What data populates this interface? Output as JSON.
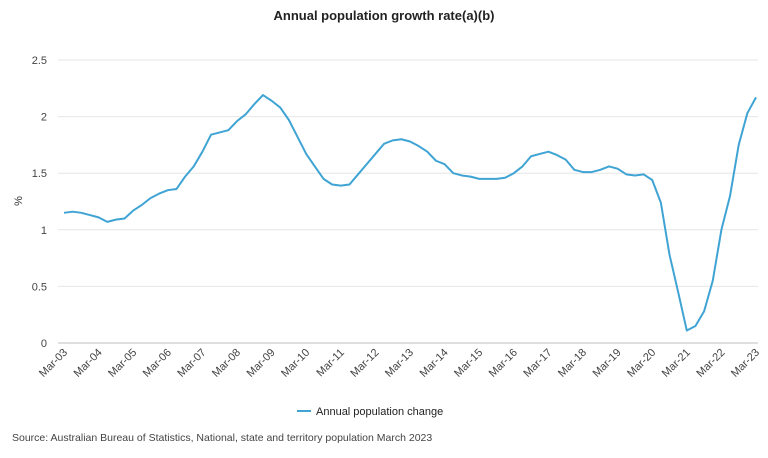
{
  "chart_data": {
    "type": "line",
    "title": "Annual population growth rate(a)(b)",
    "ylabel": "%",
    "xlabel": "",
    "ylim": [
      0,
      2.5
    ],
    "yticks": [
      0,
      0.5,
      1,
      1.5,
      2,
      2.5
    ],
    "ytick_labels": [
      "0",
      "0.5",
      "1",
      "1.5",
      "2",
      "2.5"
    ],
    "xtick_labels": [
      "Mar-03",
      "Mar-04",
      "Mar-05",
      "Mar-06",
      "Mar-07",
      "Mar-08",
      "Mar-09",
      "Mar-10",
      "Mar-11",
      "Mar-12",
      "Mar-13",
      "Mar-14",
      "Mar-15",
      "Mar-16",
      "Mar-17",
      "Mar-18",
      "Mar-19",
      "Mar-20",
      "Mar-21",
      "Mar-22",
      "Mar-23"
    ],
    "grid": "horizontal",
    "legend_position": "bottom",
    "color": "#3fa4d4",
    "series": [
      {
        "name": "Annual population change",
        "values": [
          1.15,
          1.16,
          1.15,
          1.13,
          1.11,
          1.07,
          1.09,
          1.1,
          1.17,
          1.22,
          1.28,
          1.32,
          1.35,
          1.36,
          1.47,
          1.56,
          1.69,
          1.84,
          1.86,
          1.88,
          1.96,
          2.02,
          2.11,
          2.19,
          2.14,
          2.08,
          1.97,
          1.82,
          1.67,
          1.56,
          1.45,
          1.4,
          1.39,
          1.4,
          1.49,
          1.58,
          1.67,
          1.76,
          1.79,
          1.8,
          1.78,
          1.74,
          1.69,
          1.61,
          1.58,
          1.5,
          1.48,
          1.47,
          1.45,
          1.45,
          1.45,
          1.46,
          1.5,
          1.56,
          1.65,
          1.67,
          1.69,
          1.66,
          1.62,
          1.53,
          1.51,
          1.51,
          1.53,
          1.56,
          1.54,
          1.49,
          1.48,
          1.49,
          1.44,
          1.24,
          0.78,
          0.45,
          0.11,
          0.15,
          0.28,
          0.55,
          1.0,
          1.3,
          1.75,
          2.03,
          2.17
        ]
      }
    ]
  },
  "source": "Source: Australian Bureau of Statistics, National, state and territory population March 2023"
}
